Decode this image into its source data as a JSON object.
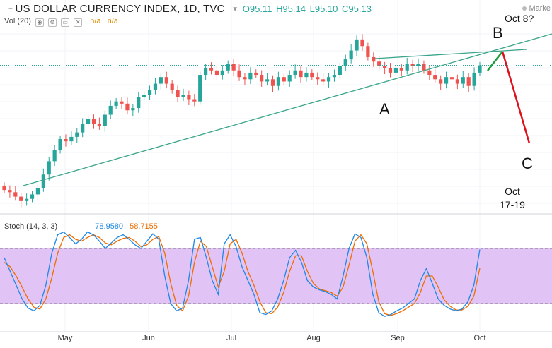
{
  "header": {
    "symbol": "US DOLLAR CURRENCY INDEX, 1D, TVC",
    "open": "O95.11",
    "high": "H95.14",
    "low": "L95.10",
    "close": "C95.13",
    "market_label": "Marke"
  },
  "volume": {
    "label": "Vol (20)",
    "v1": "n/a",
    "v2": "n/a"
  },
  "stoch": {
    "label": "Stoch (14, 3, 3)",
    "k_value": "78.9580",
    "d_value": "58.7155"
  },
  "annotations": {
    "A": "A",
    "B": "B",
    "C": "C",
    "oct8": "Oct 8?",
    "oct17_line1": "Oct",
    "oct17_line2": "17-19"
  },
  "colors": {
    "up": "#26a69a",
    "down": "#ef5350",
    "trendline": "#3aa58a",
    "forecast_up": "#1a9b3a",
    "forecast_down": "#e0101a",
    "stoch_k": "#1e88e5",
    "stoch_d": "#ef6c00",
    "stoch_band": "#e1c4f5",
    "price_line": "#26a69a"
  },
  "chart_data": [
    {
      "type": "candlestick",
      "title": "US DOLLAR CURRENCY INDEX, 1D, TVC",
      "x_tick_labels": [
        "May",
        "Jun",
        "Jul",
        "Aug",
        "Sep",
        "Oct"
      ],
      "close_series": [
        89.5,
        89.4,
        89.2,
        89.0,
        89.1,
        89.3,
        89.6,
        90.2,
        90.8,
        91.3,
        91.8,
        91.7,
        91.9,
        92.1,
        92.5,
        92.7,
        92.5,
        92.4,
        92.9,
        93.3,
        93.5,
        93.4,
        93.1,
        93.2,
        93.7,
        93.8,
        94.0,
        94.3,
        94.6,
        94.3,
        94.0,
        93.7,
        93.8,
        93.6,
        93.5,
        94.7,
        95.0,
        94.9,
        94.7,
        94.9,
        95.2,
        94.9,
        94.6,
        94.5,
        94.8,
        94.7,
        94.4,
        94.5,
        94.2,
        94.6,
        94.4,
        94.7,
        94.9,
        94.6,
        94.8,
        94.6,
        94.5,
        94.4,
        94.6,
        94.7,
        95.1,
        95.4,
        95.8,
        96.3,
        96.0,
        95.5,
        95.3,
        95.1,
        95.0,
        94.8,
        95.0,
        94.9,
        95.2,
        95.1,
        95.2,
        94.9,
        94.7,
        94.5,
        94.3,
        94.6,
        94.5,
        94.3,
        94.6,
        94.2,
        94.8,
        95.13
      ],
      "annotations": [
        "A",
        "B",
        "C",
        "Oct 8?",
        "Oct 17-19"
      ]
    },
    {
      "type": "line",
      "title": "Stoch (14, 3, 3)",
      "ylim": [
        0,
        100
      ],
      "band": [
        20,
        80
      ],
      "series": [
        {
          "name": "%K",
          "last_value": 78.958,
          "values": [
            70,
            55,
            40,
            25,
            15,
            12,
            18,
            40,
            75,
            95,
            98,
            92,
            85,
            90,
            98,
            95,
            88,
            80,
            86,
            92,
            95,
            90,
            84,
            80,
            88,
            96,
            90,
            50,
            20,
            12,
            15,
            45,
            90,
            92,
            70,
            45,
            30,
            85,
            95,
            82,
            60,
            45,
            30,
            10,
            8,
            12,
            25,
            45,
            70,
            78,
            65,
            45,
            38,
            35,
            33,
            30,
            25,
            50,
            80,
            96,
            92,
            70,
            30,
            10,
            6,
            8,
            12,
            15,
            20,
            25,
            45,
            58,
            42,
            25,
            18,
            14,
            12,
            14,
            22,
            40,
            78.958
          ]
        },
        {
          "name": "%D",
          "last_value": 58.7155,
          "values": [
            65,
            60,
            50,
            38,
            25,
            16,
            14,
            25,
            48,
            75,
            92,
            95,
            90,
            88,
            92,
            95,
            92,
            86,
            84,
            88,
            91,
            92,
            88,
            82,
            84,
            90,
            93,
            75,
            42,
            18,
            12,
            28,
            65,
            88,
            82,
            60,
            38,
            55,
            85,
            90,
            75,
            55,
            40,
            22,
            10,
            9,
            16,
            32,
            55,
            72,
            72,
            55,
            42,
            36,
            34,
            32,
            28,
            38,
            62,
            88,
            95,
            85,
            55,
            22,
            9,
            7,
            9,
            12,
            16,
            20,
            32,
            50,
            50,
            38,
            24,
            17,
            13,
            13,
            17,
            28,
            58.7155
          ]
        }
      ]
    }
  ]
}
